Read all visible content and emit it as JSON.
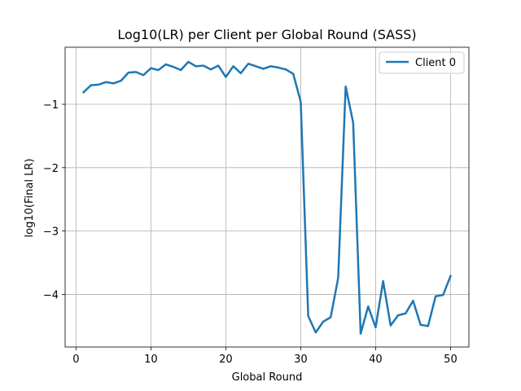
{
  "chart_data": {
    "type": "line",
    "title": "Log10(LR) per Client per Global Round (SASS)",
    "xlabel": "Global Round",
    "ylabel": "log10(Final LR)",
    "xlim": [
      -1.45,
      52.45
    ],
    "ylim": [
      -4.83,
      -0.1
    ],
    "xticks": [
      0,
      10,
      20,
      30,
      40,
      50
    ],
    "yticks": [
      -1,
      -2,
      -3,
      -4
    ],
    "grid": true,
    "legend_position": "top-right",
    "series": [
      {
        "name": "Client 0",
        "color": "#1f77b4",
        "x": [
          1,
          2,
          3,
          4,
          5,
          6,
          7,
          8,
          9,
          10,
          11,
          12,
          13,
          14,
          15,
          16,
          17,
          18,
          19,
          20,
          21,
          22,
          23,
          24,
          25,
          26,
          27,
          28,
          29,
          30,
          31,
          32,
          33,
          34,
          35,
          36,
          37,
          38,
          39,
          40,
          41,
          42,
          43,
          44,
          45,
          46,
          47,
          48,
          49,
          50
        ],
        "values": [
          -0.81,
          -0.7,
          -0.69,
          -0.65,
          -0.67,
          -0.63,
          -0.5,
          -0.49,
          -0.54,
          -0.43,
          -0.46,
          -0.37,
          -0.41,
          -0.46,
          -0.33,
          -0.4,
          -0.39,
          -0.45,
          -0.39,
          -0.57,
          -0.4,
          -0.51,
          -0.36,
          -0.4,
          -0.44,
          -0.4,
          -0.42,
          -0.45,
          -0.52,
          -0.96,
          -4.34,
          -4.6,
          -4.43,
          -4.36,
          -3.74,
          -0.72,
          -1.29,
          -4.62,
          -4.19,
          -4.52,
          -3.79,
          -4.49,
          -4.33,
          -4.3,
          -4.1,
          -4.48,
          -4.5,
          -4.03,
          -4.01,
          -3.71
        ]
      }
    ]
  }
}
